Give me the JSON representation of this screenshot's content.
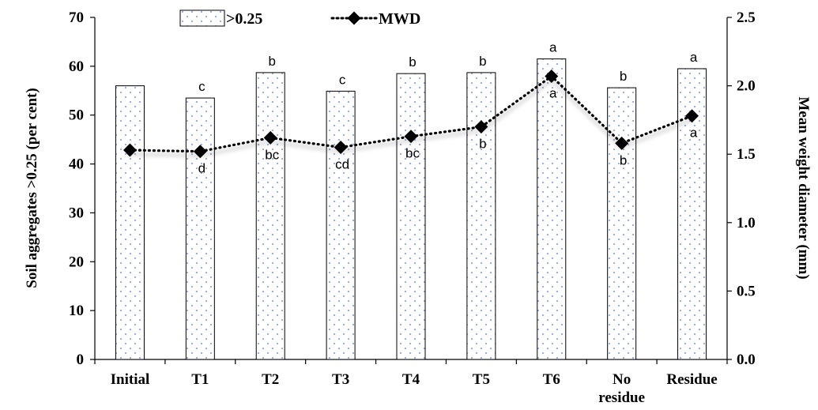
{
  "chart_data": {
    "type": "bar",
    "categories": [
      "Initial",
      "T1",
      "T2",
      "T3",
      "T4",
      "T5",
      "T6",
      "No\nresidue",
      "Residue"
    ],
    "series": [
      {
        "name": ">0.25",
        "type": "bar",
        "axis": "left",
        "values": [
          56.0,
          53.5,
          58.7,
          54.9,
          58.5,
          58.7,
          61.5,
          55.6,
          59.5
        ],
        "significance": [
          "",
          "c",
          "b",
          "c",
          "b",
          "b",
          "a",
          "b",
          "a"
        ]
      },
      {
        "name": "MWD",
        "type": "line",
        "axis": "right",
        "values": [
          1.53,
          1.52,
          1.62,
          1.55,
          1.63,
          1.7,
          2.07,
          1.58,
          1.78
        ],
        "significance": [
          "",
          "d",
          "bc",
          "cd",
          "bc",
          "b",
          "a",
          "b",
          "a"
        ]
      }
    ],
    "ylabel": "Soil aggregates >0.25 (per cent)",
    "y2label": "Mean weight diameter (mm)",
    "ylim": [
      0,
      70
    ],
    "y2lim": [
      0,
      2.5
    ],
    "yticks": [
      "0",
      "10",
      "20",
      "30",
      "40",
      "50",
      "60",
      "70"
    ],
    "y2ticks": [
      "0.0",
      "0.5",
      "1.0",
      "1.5",
      "2.0",
      "2.5"
    ],
    "grid": false,
    "legend_position": "top",
    "colors": {
      "bar_fill": "#ffffff",
      "bar_dots": "#8fa9d8",
      "bar_edge": "#000000",
      "line": "#000000"
    }
  }
}
